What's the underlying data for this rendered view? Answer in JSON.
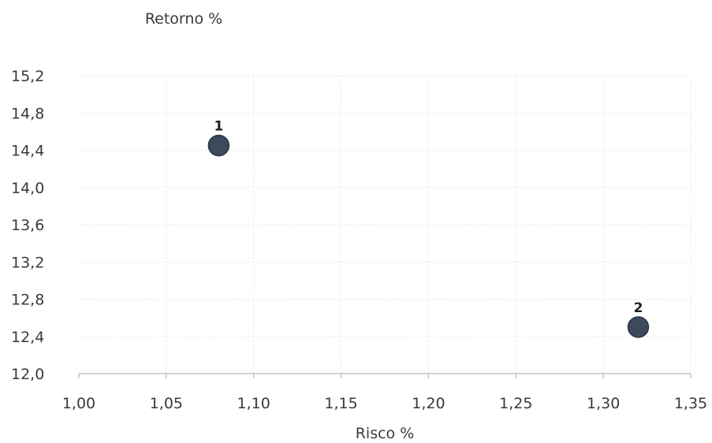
{
  "chart_data": {
    "type": "scatter",
    "title": "",
    "ylabel": "Retorno %",
    "xlabel": "Risco %",
    "xlim": [
      1.0,
      1.35
    ],
    "ylim": [
      12.0,
      15.2
    ],
    "x_ticks": [
      "1,00",
      "1,05",
      "1,10",
      "1,15",
      "1,20",
      "1,25",
      "1,30",
      "1,35"
    ],
    "y_ticks": [
      "12,0",
      "12,4",
      "12,8",
      "13,2",
      "13,6",
      "14,0",
      "14,4",
      "14,8",
      "15,2"
    ],
    "grid": true,
    "points": [
      {
        "label": "1",
        "x": 1.08,
        "y": 14.45
      },
      {
        "label": "2",
        "x": 1.32,
        "y": 12.5
      }
    ],
    "colors": {
      "point": "#3d4a5c",
      "point_edge": "#2a3545"
    }
  }
}
